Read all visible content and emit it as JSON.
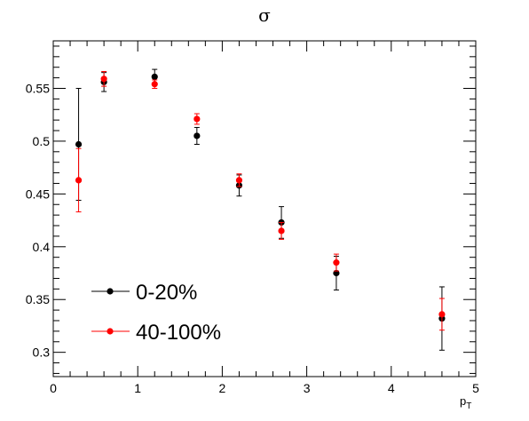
{
  "chart_data": {
    "type": "scatter",
    "title": "σ",
    "xlabel": "p",
    "xlabel_sub": "T",
    "ylabel": "",
    "xlim": [
      0,
      5
    ],
    "ylim": [
      0.277,
      0.595
    ],
    "x_ticks": [
      "0",
      "1",
      "2",
      "3",
      "4",
      "5"
    ],
    "y_ticks": [
      "0.3",
      "0.35",
      "0.4",
      "0.45",
      "0.5",
      "0.55"
    ],
    "grid": false,
    "legend_position": "bottom-left",
    "series": [
      {
        "name": "0-20%",
        "color": "#000000",
        "points": [
          {
            "x": 0.3,
            "y": 0.497,
            "err": 0.053
          },
          {
            "x": 0.6,
            "y": 0.556,
            "err": 0.009
          },
          {
            "x": 1.2,
            "y": 0.561,
            "err": 0.007
          },
          {
            "x": 1.7,
            "y": 0.505,
            "err": 0.008
          },
          {
            "x": 2.2,
            "y": 0.458,
            "err": 0.01
          },
          {
            "x": 2.7,
            "y": 0.423,
            "err": 0.015
          },
          {
            "x": 3.35,
            "y": 0.375,
            "err": 0.016
          },
          {
            "x": 4.6,
            "y": 0.332,
            "err": 0.03
          }
        ]
      },
      {
        "name": "40-100%",
        "color": "#ff0000",
        "points": [
          {
            "x": 0.3,
            "y": 0.463,
            "err": 0.03
          },
          {
            "x": 0.6,
            "y": 0.559,
            "err": 0.007
          },
          {
            "x": 1.2,
            "y": 0.554,
            "err": 0.004
          },
          {
            "x": 1.7,
            "y": 0.521,
            "err": 0.005
          },
          {
            "x": 2.2,
            "y": 0.463,
            "err": 0.006
          },
          {
            "x": 2.7,
            "y": 0.415,
            "err": 0.008
          },
          {
            "x": 3.35,
            "y": 0.385,
            "err": 0.008
          },
          {
            "x": 4.6,
            "y": 0.336,
            "err": 0.015
          }
        ]
      }
    ]
  }
}
